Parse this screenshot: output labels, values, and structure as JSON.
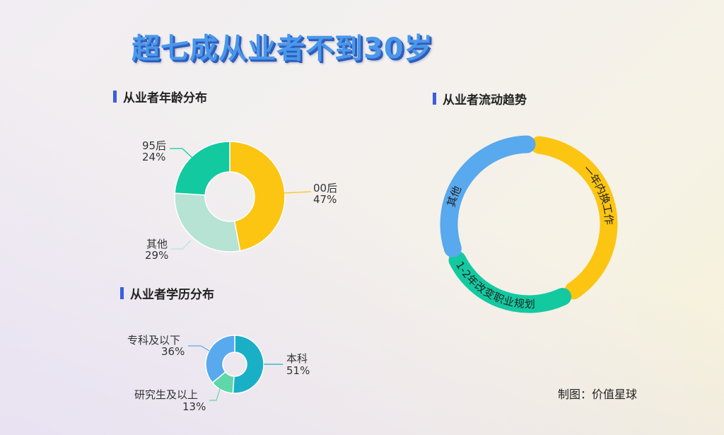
{
  "title": "超七成从业者不到30岁",
  "sections": {
    "age": {
      "heading": "从业者年龄分布"
    },
    "education": {
      "heading": "从业者学历分布"
    },
    "flow": {
      "heading": "从业者流动趋势"
    }
  },
  "credit": "制图：价值星球",
  "colors": {
    "title": "#4a98ea",
    "title_shadow": "#2f5fc0",
    "heading_bar": "#3b5de0",
    "yellow": "#fbc512",
    "mint_light": "#b6e3d3",
    "teal": "#13c9a0",
    "cyan": "#19b0c7",
    "green_light": "#5fd7a8",
    "blue": "#58a9ee"
  },
  "chart_data": [
    {
      "type": "pie",
      "title": "从业者年龄分布",
      "donut": true,
      "categories": [
        "00后",
        "其他",
        "95后"
      ],
      "values": [
        47,
        29,
        24
      ],
      "unit": "%",
      "colors": [
        "#fbc512",
        "#b6e3d3",
        "#13c9a0"
      ],
      "labels": [
        {
          "name": "00后",
          "pct": "47%"
        },
        {
          "name": "其他",
          "pct": "29%"
        },
        {
          "name": "95后",
          "pct": "24%"
        }
      ]
    },
    {
      "type": "pie",
      "title": "从业者学历分布",
      "donut": true,
      "categories": [
        "本科",
        "研究生及以上",
        "专科及以下"
      ],
      "values": [
        51,
        13,
        36
      ],
      "unit": "%",
      "colors": [
        "#19b0c7",
        "#5fd7a8",
        "#58a9ee"
      ],
      "labels": [
        {
          "name": "本科",
          "pct": "51%"
        },
        {
          "name": "研究生及以上",
          "pct": "13%"
        },
        {
          "name": "专科及以下",
          "pct": "36%"
        }
      ]
    },
    {
      "type": "pie",
      "title": "从业者流动趋势",
      "donut": true,
      "note": "ring segments without numeric labels; proportions estimated from arc lengths",
      "categories": [
        "一年内换工作",
        "1-2年改变职业规划",
        "其他"
      ],
      "values": [
        41,
        27,
        32
      ],
      "colors": [
        "#fbc512",
        "#13c9a0",
        "#58a9ee"
      ]
    }
  ]
}
